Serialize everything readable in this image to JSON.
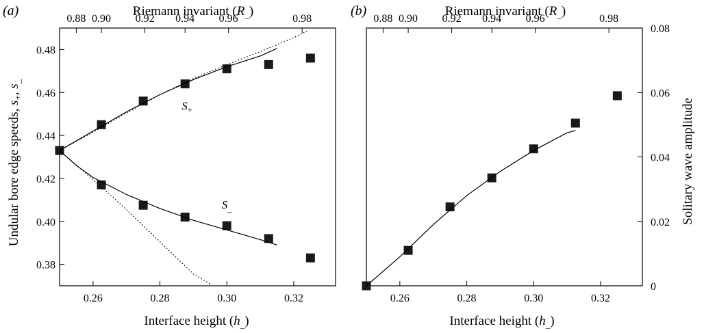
{
  "chart_data": [
    {
      "type": "scatter",
      "panel_label": "(a)",
      "xlabel": "Interface height (h_)",
      "top_xlabel": "Riemann invariant (R_)",
      "ylabel": "Undular bore edge speeds, s+, s_",
      "xlim": [
        0.25,
        0.3325
      ],
      "ylim": [
        0.37,
        0.49
      ],
      "x_ticks": [
        0.26,
        0.28,
        0.3,
        0.32
      ],
      "x_tick_labels": [
        "0.26",
        "0.28",
        "0.30",
        "0.32"
      ],
      "y_ticks": [
        0.38,
        0.4,
        0.42,
        0.44,
        0.46,
        0.48
      ],
      "y_tick_labels": [
        "0.38",
        "0.40",
        "0.42",
        "0.44",
        "0.46",
        "0.48"
      ],
      "top_ticks_at_h": [
        0.255,
        0.2625,
        0.2755,
        0.2875,
        0.3005,
        0.3225
      ],
      "top_tick_labels": [
        "0.88",
        "0.90",
        "0.92",
        "0.94",
        "0.96",
        "0.98"
      ],
      "grid": false,
      "curve_labels": [
        {
          "text": "S+",
          "x": 0.2865,
          "y": 0.452
        },
        {
          "text": "S_",
          "x": 0.2985,
          "y": 0.406
        }
      ],
      "series": [
        {
          "kind": "markers",
          "marker": "square",
          "x": [
            0.25,
            0.2625,
            0.275,
            0.2875,
            0.3,
            0.3125,
            0.325
          ],
          "y": [
            0.433,
            0.445,
            0.456,
            0.464,
            0.471,
            0.473,
            0.476
          ]
        },
        {
          "kind": "markers",
          "marker": "square",
          "x": [
            0.2625,
            0.275,
            0.2875,
            0.3,
            0.3125,
            0.325
          ],
          "y": [
            0.417,
            0.4075,
            0.402,
            0.398,
            0.392,
            0.383
          ]
        },
        {
          "kind": "solid",
          "x": [
            0.25,
            0.26,
            0.27,
            0.28,
            0.29,
            0.3,
            0.31,
            0.315
          ],
          "y": [
            0.433,
            0.442,
            0.451,
            0.459,
            0.466,
            0.472,
            0.477,
            0.4805
          ]
        },
        {
          "kind": "solid",
          "x": [
            0.25,
            0.255,
            0.26,
            0.27,
            0.28,
            0.29,
            0.3,
            0.31,
            0.315
          ],
          "y": [
            0.433,
            0.426,
            0.4205,
            0.4125,
            0.406,
            0.4005,
            0.396,
            0.3915,
            0.389
          ]
        },
        {
          "kind": "dotted",
          "x": [
            0.25,
            0.26,
            0.27,
            0.28,
            0.29,
            0.3,
            0.31,
            0.32,
            0.3245
          ],
          "y": [
            0.433,
            0.4415,
            0.4505,
            0.459,
            0.4665,
            0.473,
            0.479,
            0.4855,
            0.489
          ]
        },
        {
          "kind": "dotted",
          "x": [
            0.25,
            0.26,
            0.27,
            0.28,
            0.29,
            0.2955
          ],
          "y": [
            0.433,
            0.4195,
            0.4055,
            0.3905,
            0.3755,
            0.3705
          ]
        }
      ]
    },
    {
      "type": "scatter",
      "panel_label": "(b)",
      "xlabel": "Interface height (h_)",
      "top_xlabel": "Riemann invariant (R_)",
      "ylabel": "Solitary wave amplitude",
      "xlim": [
        0.25,
        0.3325
      ],
      "ylim": [
        0,
        0.08
      ],
      "x_ticks": [
        0.26,
        0.28,
        0.3,
        0.32
      ],
      "x_tick_labels": [
        "0.26",
        "0.28",
        "0.30",
        "0.32"
      ],
      "y_ticks": [
        0,
        0.02,
        0.04,
        0.06,
        0.08
      ],
      "y_tick_labels": [
        "0",
        "0.02",
        "0.04",
        "0.06",
        "0.08"
      ],
      "top_ticks_at_h": [
        0.255,
        0.2625,
        0.2755,
        0.2875,
        0.3005,
        0.3225
      ],
      "top_tick_labels": [
        "0.88",
        "0.90",
        "0.92",
        "0.94",
        "0.96",
        "0.98"
      ],
      "grid": false,
      "series": [
        {
          "kind": "markers",
          "marker": "square",
          "x": [
            0.25,
            0.2625,
            0.275,
            0.2875,
            0.3,
            0.3125,
            0.325
          ],
          "y": [
            0.0,
            0.011,
            0.0245,
            0.0335,
            0.0425,
            0.0505,
            0.059
          ]
        },
        {
          "kind": "solid",
          "x": [
            0.25,
            0.26,
            0.27,
            0.28,
            0.29,
            0.3,
            0.31,
            0.3125
          ],
          "y": [
            0.0,
            0.009,
            0.019,
            0.028,
            0.0355,
            0.042,
            0.0475,
            0.0482
          ]
        }
      ]
    }
  ]
}
